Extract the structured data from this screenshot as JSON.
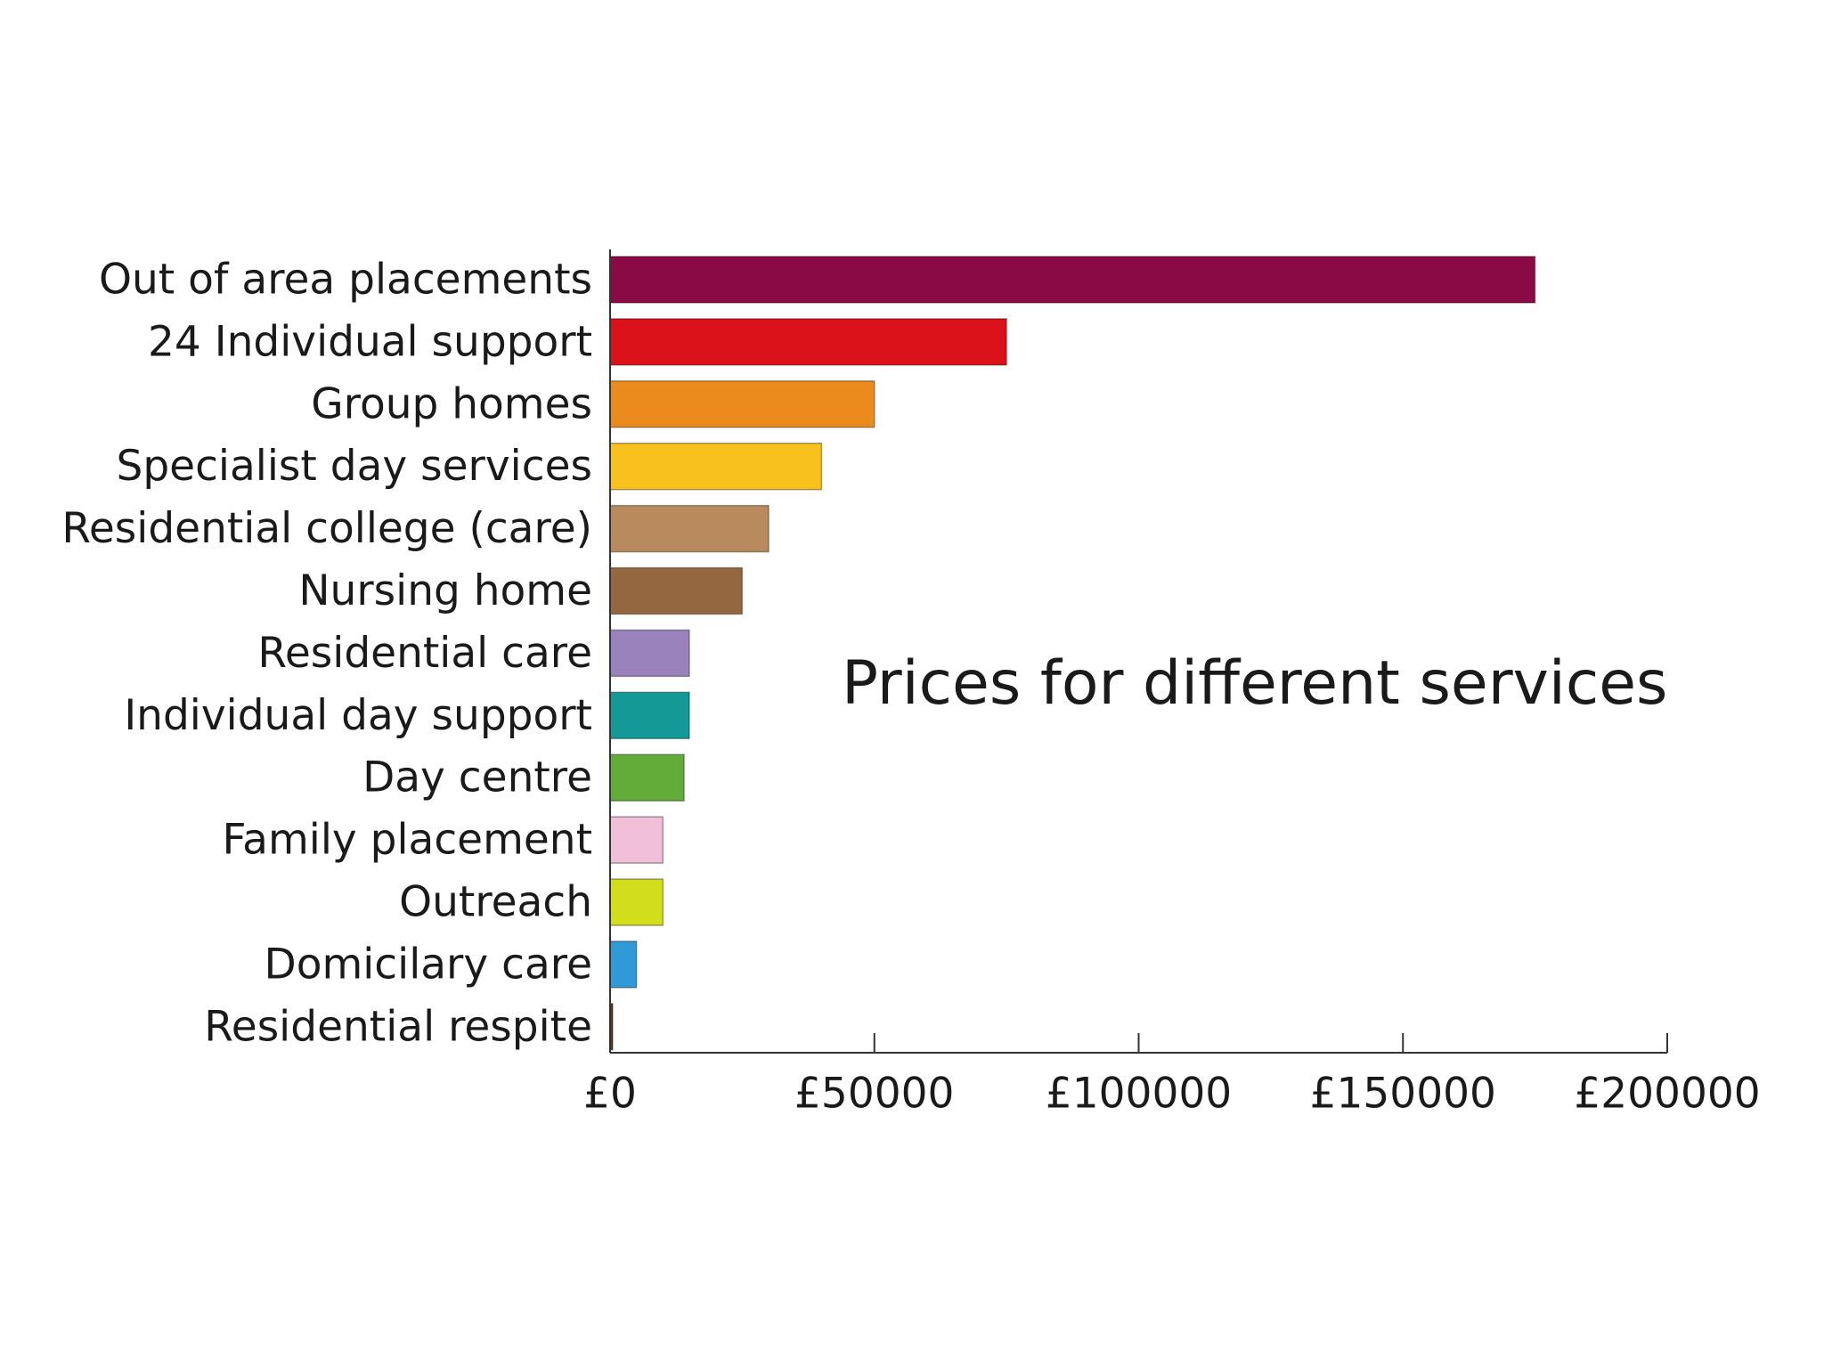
{
  "chart_data": {
    "type": "bar",
    "orientation": "horizontal",
    "title": "Prices for different services",
    "xlabel": "",
    "ylabel": "",
    "categories": [
      "Out of area placements",
      "24 Individual support",
      "Group homes",
      "Specialist day services",
      "Residential college (care)",
      "Nursing home",
      "Residential care",
      "Individual day support",
      "Day centre",
      "Family placement",
      "Outreach",
      "Domicilary care",
      "Residential respite"
    ],
    "values": [
      175000,
      75000,
      50000,
      40000,
      30000,
      25000,
      15000,
      15000,
      14000,
      10000,
      10000,
      5000,
      500
    ],
    "colors": [
      "#8a0a45",
      "#db1119",
      "#ec8b1d",
      "#f8c11d",
      "#b98a5d",
      "#946740",
      "#9a82bd",
      "#149996",
      "#64ac3a",
      "#f0bfd8",
      "#d2de1c",
      "#2f9ad7",
      "#5a3518"
    ],
    "xlim": [
      0,
      200000
    ],
    "xticks": [
      0,
      50000,
      100000,
      150000,
      200000
    ],
    "xtick_labels": [
      "£0",
      "£50000",
      "£100000",
      "£150000",
      "£200000"
    ],
    "grid": false,
    "legend": "none"
  }
}
